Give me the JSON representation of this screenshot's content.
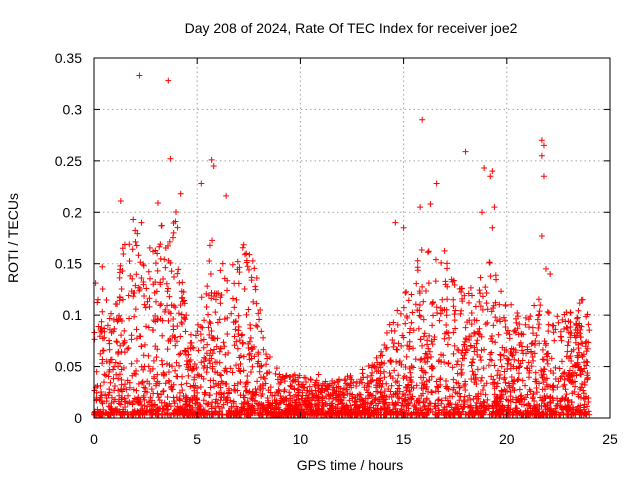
{
  "chart_data": {
    "type": "scatter",
    "title": "Day 208 of 2024, Rate Of TEC Index for receiver joe2",
    "xlabel": "GPS time / hours",
    "ylabel": "ROTI / TECUs",
    "xlim": [
      0,
      25
    ],
    "ylim": [
      0,
      0.35
    ],
    "x_ticks": [
      0,
      5,
      10,
      15,
      20,
      25
    ],
    "x_tick_labels": [
      "0",
      "5",
      "10",
      "15",
      "20",
      "25"
    ],
    "y_ticks": [
      0,
      0.05,
      0.1,
      0.15,
      0.2,
      0.25,
      0.3,
      0.35
    ],
    "y_tick_labels": [
      "0",
      "0.05",
      "0.1",
      "0.15",
      "0.2",
      "0.25",
      "0.3",
      "0.35"
    ],
    "grid": true,
    "marker": "+",
    "series": [
      {
        "name": "ROTI",
        "color": "#ff0000",
        "envelope": [
          {
            "x": 0.0,
            "y": 0.13
          },
          {
            "x": 0.5,
            "y": 0.13
          },
          {
            "x": 1.0,
            "y": 0.12
          },
          {
            "x": 1.5,
            "y": 0.17
          },
          {
            "x": 2.0,
            "y": 0.18
          },
          {
            "x": 2.5,
            "y": 0.17
          },
          {
            "x": 3.0,
            "y": 0.17
          },
          {
            "x": 3.5,
            "y": 0.2
          },
          {
            "x": 4.0,
            "y": 0.2
          },
          {
            "x": 4.5,
            "y": 0.09
          },
          {
            "x": 5.0,
            "y": 0.08
          },
          {
            "x": 5.5,
            "y": 0.18
          },
          {
            "x": 6.0,
            "y": 0.16
          },
          {
            "x": 6.5,
            "y": 0.15
          },
          {
            "x": 7.0,
            "y": 0.16
          },
          {
            "x": 7.5,
            "y": 0.18
          },
          {
            "x": 8.0,
            "y": 0.12
          },
          {
            "x": 8.5,
            "y": 0.06
          },
          {
            "x": 9.0,
            "y": 0.04
          },
          {
            "x": 9.5,
            "y": 0.04
          },
          {
            "x": 10.0,
            "y": 0.04
          },
          {
            "x": 10.5,
            "y": 0.04
          },
          {
            "x": 11.0,
            "y": 0.04
          },
          {
            "x": 11.5,
            "y": 0.035
          },
          {
            "x": 12.0,
            "y": 0.035
          },
          {
            "x": 12.5,
            "y": 0.04
          },
          {
            "x": 13.0,
            "y": 0.045
          },
          {
            "x": 13.5,
            "y": 0.05
          },
          {
            "x": 14.0,
            "y": 0.07
          },
          {
            "x": 14.5,
            "y": 0.1
          },
          {
            "x": 15.0,
            "y": 0.12
          },
          {
            "x": 15.5,
            "y": 0.14
          },
          {
            "x": 16.0,
            "y": 0.17
          },
          {
            "x": 16.5,
            "y": 0.15
          },
          {
            "x": 17.0,
            "y": 0.16
          },
          {
            "x": 17.5,
            "y": 0.13
          },
          {
            "x": 18.0,
            "y": 0.12
          },
          {
            "x": 18.5,
            "y": 0.13
          },
          {
            "x": 19.0,
            "y": 0.15
          },
          {
            "x": 19.5,
            "y": 0.16
          },
          {
            "x": 20.0,
            "y": 0.12
          },
          {
            "x": 20.5,
            "y": 0.1
          },
          {
            "x": 21.0,
            "y": 0.1
          },
          {
            "x": 21.5,
            "y": 0.12
          },
          {
            "x": 22.0,
            "y": 0.1
          },
          {
            "x": 22.5,
            "y": 0.1
          },
          {
            "x": 23.0,
            "y": 0.1
          },
          {
            "x": 23.5,
            "y": 0.12
          },
          {
            "x": 24.0,
            "y": 0.1
          }
        ],
        "outliers": [
          {
            "x": 2.2,
            "y": 0.333
          },
          {
            "x": 3.6,
            "y": 0.328
          },
          {
            "x": 3.7,
            "y": 0.252
          },
          {
            "x": 5.7,
            "y": 0.251
          },
          {
            "x": 5.8,
            "y": 0.245
          },
          {
            "x": 5.2,
            "y": 0.228
          },
          {
            "x": 6.4,
            "y": 0.216
          },
          {
            "x": 1.3,
            "y": 0.211
          },
          {
            "x": 3.1,
            "y": 0.209
          },
          {
            "x": 1.9,
            "y": 0.193
          },
          {
            "x": 2.3,
            "y": 0.19
          },
          {
            "x": 4.2,
            "y": 0.218
          },
          {
            "x": 15.9,
            "y": 0.29
          },
          {
            "x": 16.3,
            "y": 0.208
          },
          {
            "x": 16.6,
            "y": 0.228
          },
          {
            "x": 18.0,
            "y": 0.259
          },
          {
            "x": 18.9,
            "y": 0.243
          },
          {
            "x": 19.3,
            "y": 0.24
          },
          {
            "x": 19.2,
            "y": 0.235
          },
          {
            "x": 19.4,
            "y": 0.205
          },
          {
            "x": 18.8,
            "y": 0.2
          },
          {
            "x": 19.3,
            "y": 0.185
          },
          {
            "x": 21.7,
            "y": 0.27
          },
          {
            "x": 21.8,
            "y": 0.265
          },
          {
            "x": 21.7,
            "y": 0.255
          },
          {
            "x": 21.8,
            "y": 0.235
          },
          {
            "x": 21.7,
            "y": 0.177
          },
          {
            "x": 21.9,
            "y": 0.145
          },
          {
            "x": 22.1,
            "y": 0.14
          },
          {
            "x": 15.8,
            "y": 0.205
          },
          {
            "x": 14.6,
            "y": 0.19
          },
          {
            "x": 15.0,
            "y": 0.185
          },
          {
            "x": 1.4,
            "y": 0.165
          },
          {
            "x": 0.4,
            "y": 0.147
          }
        ]
      }
    ]
  }
}
